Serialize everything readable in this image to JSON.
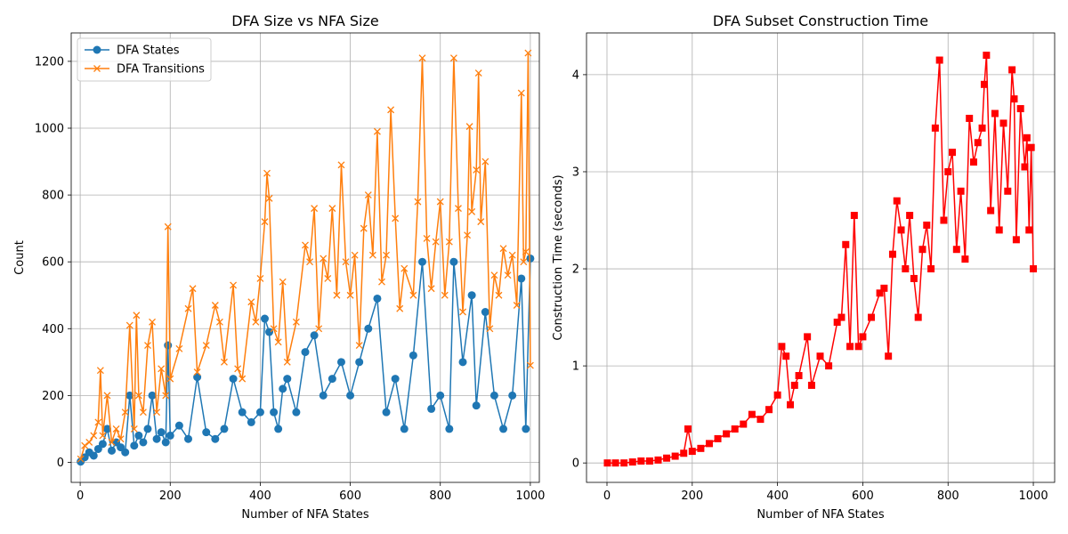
{
  "chart_data": [
    {
      "type": "line",
      "title": "DFA Size vs NFA Size",
      "xlabel": "Number of NFA States",
      "ylabel": "Count",
      "xlim": [
        -20,
        1020
      ],
      "ylim": [
        -60,
        1285
      ],
      "xticks": [
        0,
        200,
        400,
        600,
        800,
        1000
      ],
      "yticks": [
        0,
        200,
        400,
        600,
        800,
        1000,
        1200
      ],
      "grid": true,
      "legend": "upper-left",
      "series": [
        {
          "name": "DFA States",
          "color": "#1f77b4",
          "marker": "circle",
          "points": [
            [
              1,
              2
            ],
            [
              10,
              15
            ],
            [
              20,
              30
            ],
            [
              30,
              20
            ],
            [
              40,
              40
            ],
            [
              50,
              55
            ],
            [
              60,
              100
            ],
            [
              70,
              35
            ],
            [
              80,
              60
            ],
            [
              90,
              45
            ],
            [
              100,
              30
            ],
            [
              110,
              200
            ],
            [
              120,
              50
            ],
            [
              130,
              80
            ],
            [
              140,
              60
            ],
            [
              150,
              100
            ],
            [
              160,
              200
            ],
            [
              170,
              70
            ],
            [
              180,
              90
            ],
            [
              190,
              60
            ],
            [
              195,
              350
            ],
            [
              200,
              80
            ],
            [
              220,
              110
            ],
            [
              240,
              70
            ],
            [
              260,
              255
            ],
            [
              280,
              90
            ],
            [
              300,
              70
            ],
            [
              320,
              100
            ],
            [
              340,
              250
            ],
            [
              360,
              150
            ],
            [
              380,
              120
            ],
            [
              400,
              150
            ],
            [
              410,
              430
            ],
            [
              420,
              390
            ],
            [
              430,
              150
            ],
            [
              440,
              100
            ],
            [
              450,
              220
            ],
            [
              460,
              250
            ],
            [
              480,
              150
            ],
            [
              500,
              330
            ],
            [
              520,
              380
            ],
            [
              540,
              200
            ],
            [
              560,
              250
            ],
            [
              580,
              300
            ],
            [
              600,
              200
            ],
            [
              620,
              300
            ],
            [
              640,
              400
            ],
            [
              660,
              490
            ],
            [
              680,
              150
            ],
            [
              700,
              250
            ],
            [
              720,
              100
            ],
            [
              740,
              320
            ],
            [
              760,
              600
            ],
            [
              780,
              160
            ],
            [
              800,
              200
            ],
            [
              820,
              100
            ],
            [
              830,
              600
            ],
            [
              850,
              300
            ],
            [
              870,
              500
            ],
            [
              880,
              170
            ],
            [
              900,
              450
            ],
            [
              920,
              200
            ],
            [
              940,
              100
            ],
            [
              960,
              200
            ],
            [
              980,
              550
            ],
            [
              990,
              100
            ],
            [
              1000,
              610
            ]
          ]
        },
        {
          "name": "DFA Transitions",
          "color": "#ff7f0e",
          "marker": "x",
          "points": [
            [
              1,
              10
            ],
            [
              10,
              50
            ],
            [
              20,
              60
            ],
            [
              30,
              80
            ],
            [
              40,
              120
            ],
            [
              45,
              275
            ],
            [
              50,
              80
            ],
            [
              60,
              200
            ],
            [
              70,
              60
            ],
            [
              80,
              100
            ],
            [
              90,
              70
            ],
            [
              100,
              150
            ],
            [
              110,
              410
            ],
            [
              120,
              100
            ],
            [
              125,
              440
            ],
            [
              130,
              200
            ],
            [
              140,
              150
            ],
            [
              150,
              350
            ],
            [
              160,
              420
            ],
            [
              170,
              150
            ],
            [
              180,
              280
            ],
            [
              190,
              200
            ],
            [
              195,
              705
            ],
            [
              200,
              250
            ],
            [
              220,
              340
            ],
            [
              240,
              460
            ],
            [
              250,
              520
            ],
            [
              260,
              270
            ],
            [
              280,
              350
            ],
            [
              300,
              470
            ],
            [
              310,
              420
            ],
            [
              320,
              300
            ],
            [
              340,
              530
            ],
            [
              350,
              280
            ],
            [
              360,
              250
            ],
            [
              380,
              480
            ],
            [
              390,
              420
            ],
            [
              400,
              550
            ],
            [
              410,
              720
            ],
            [
              415,
              865
            ],
            [
              420,
              790
            ],
            [
              430,
              400
            ],
            [
              440,
              360
            ],
            [
              450,
              540
            ],
            [
              460,
              300
            ],
            [
              480,
              420
            ],
            [
              500,
              650
            ],
            [
              510,
              600
            ],
            [
              520,
              760
            ],
            [
              530,
              400
            ],
            [
              540,
              610
            ],
            [
              550,
              550
            ],
            [
              560,
              760
            ],
            [
              570,
              500
            ],
            [
              580,
              890
            ],
            [
              590,
              600
            ],
            [
              600,
              500
            ],
            [
              610,
              620
            ],
            [
              620,
              350
            ],
            [
              630,
              700
            ],
            [
              640,
              800
            ],
            [
              650,
              620
            ],
            [
              660,
              990
            ],
            [
              670,
              540
            ],
            [
              680,
              620
            ],
            [
              690,
              1055
            ],
            [
              700,
              730
            ],
            [
              710,
              460
            ],
            [
              720,
              580
            ],
            [
              740,
              500
            ],
            [
              750,
              780
            ],
            [
              760,
              1210
            ],
            [
              770,
              670
            ],
            [
              780,
              520
            ],
            [
              790,
              660
            ],
            [
              800,
              780
            ],
            [
              810,
              500
            ],
            [
              820,
              660
            ],
            [
              830,
              1210
            ],
            [
              840,
              760
            ],
            [
              850,
              450
            ],
            [
              860,
              680
            ],
            [
              865,
              1005
            ],
            [
              870,
              750
            ],
            [
              880,
              875
            ],
            [
              885,
              1165
            ],
            [
              890,
              720
            ],
            [
              900,
              900
            ],
            [
              910,
              400
            ],
            [
              920,
              560
            ],
            [
              930,
              500
            ],
            [
              940,
              640
            ],
            [
              950,
              560
            ],
            [
              960,
              620
            ],
            [
              970,
              470
            ],
            [
              980,
              1105
            ],
            [
              985,
              600
            ],
            [
              990,
              630
            ],
            [
              995,
              1225
            ],
            [
              1000,
              290
            ]
          ]
        }
      ]
    },
    {
      "type": "line",
      "title": "DFA Subset Construction Time",
      "xlabel": "Number of NFA States",
      "ylabel": "Construction Time (seconds)",
      "xlim": [
        -48,
        1050
      ],
      "ylim": [
        -0.2,
        4.43
      ],
      "xticks": [
        0,
        200,
        400,
        600,
        800,
        1000
      ],
      "yticks": [
        0,
        1,
        2,
        3,
        4
      ],
      "grid": true,
      "series": [
        {
          "name": "Construction Time",
          "color": "#ff0000",
          "marker": "square",
          "points": [
            [
              1,
              0
            ],
            [
              20,
              0
            ],
            [
              40,
              0
            ],
            [
              60,
              0.01
            ],
            [
              80,
              0.02
            ],
            [
              100,
              0.02
            ],
            [
              120,
              0.03
            ],
            [
              140,
              0.05
            ],
            [
              160,
              0.07
            ],
            [
              180,
              0.1
            ],
            [
              190,
              0.35
            ],
            [
              200,
              0.12
            ],
            [
              220,
              0.15
            ],
            [
              240,
              0.2
            ],
            [
              260,
              0.25
            ],
            [
              280,
              0.3
            ],
            [
              300,
              0.35
            ],
            [
              320,
              0.4
            ],
            [
              340,
              0.5
            ],
            [
              360,
              0.45
            ],
            [
              380,
              0.55
            ],
            [
              400,
              0.7
            ],
            [
              410,
              1.2
            ],
            [
              420,
              1.1
            ],
            [
              430,
              0.6
            ],
            [
              440,
              0.8
            ],
            [
              450,
              0.9
            ],
            [
              470,
              1.3
            ],
            [
              480,
              0.8
            ],
            [
              500,
              1.1
            ],
            [
              520,
              1.0
            ],
            [
              540,
              1.45
            ],
            [
              550,
              1.5
            ],
            [
              560,
              2.25
            ],
            [
              570,
              1.2
            ],
            [
              580,
              2.55
            ],
            [
              590,
              1.2
            ],
            [
              600,
              1.3
            ],
            [
              620,
              1.5
            ],
            [
              640,
              1.75
            ],
            [
              650,
              1.8
            ],
            [
              660,
              1.1
            ],
            [
              670,
              2.15
            ],
            [
              680,
              2.7
            ],
            [
              690,
              2.4
            ],
            [
              700,
              2.0
            ],
            [
              710,
              2.55
            ],
            [
              720,
              1.9
            ],
            [
              730,
              1.5
            ],
            [
              740,
              2.2
            ],
            [
              750,
              2.45
            ],
            [
              760,
              2.0
            ],
            [
              770,
              3.45
            ],
            [
              780,
              4.15
            ],
            [
              790,
              2.5
            ],
            [
              800,
              3.0
            ],
            [
              810,
              3.2
            ],
            [
              820,
              2.2
            ],
            [
              830,
              2.8
            ],
            [
              840,
              2.1
            ],
            [
              850,
              3.55
            ],
            [
              860,
              3.1
            ],
            [
              870,
              3.3
            ],
            [
              880,
              3.45
            ],
            [
              885,
              3.9
            ],
            [
              890,
              4.2
            ],
            [
              900,
              2.6
            ],
            [
              910,
              3.6
            ],
            [
              920,
              2.4
            ],
            [
              930,
              3.5
            ],
            [
              940,
              2.8
            ],
            [
              950,
              4.05
            ],
            [
              955,
              3.75
            ],
            [
              960,
              2.3
            ],
            [
              970,
              3.65
            ],
            [
              980,
              3.05
            ],
            [
              985,
              3.35
            ],
            [
              990,
              2.4
            ],
            [
              995,
              3.25
            ],
            [
              1000,
              2.0
            ]
          ]
        }
      ]
    }
  ]
}
